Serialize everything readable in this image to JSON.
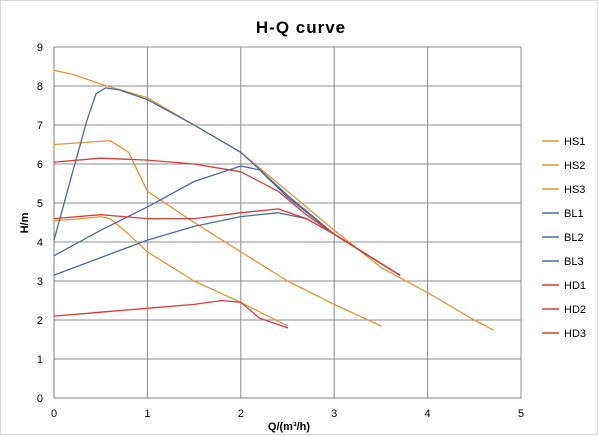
{
  "chart_data": {
    "type": "line",
    "title": "H-Q  curve",
    "xlabel": "Q/(m³/h)",
    "ylabel": "H/m",
    "xlim": [
      0,
      5
    ],
    "ylim": [
      0,
      9
    ],
    "x_ticks": [
      0,
      1,
      2,
      3,
      4,
      5
    ],
    "y_ticks": [
      0,
      1,
      2,
      3,
      4,
      5,
      6,
      7,
      8,
      9
    ],
    "grid": true,
    "legend_position": "right",
    "series": [
      {
        "name": "HS1",
        "color": "#e0963c",
        "x": [
          0,
          0.2,
          0.5,
          1.0,
          1.5,
          2.0,
          2.5,
          3.0,
          3.5,
          4.0,
          4.5,
          4.7
        ],
        "y": [
          8.4,
          8.3,
          8.05,
          7.7,
          7.0,
          6.3,
          5.3,
          4.3,
          3.35,
          2.7,
          2.0,
          1.75
        ]
      },
      {
        "name": "HS2",
        "color": "#e0963c",
        "x": [
          0,
          0.3,
          0.6,
          0.8,
          1.0,
          1.5,
          2.0,
          2.5,
          3.0,
          3.5
        ],
        "y": [
          6.5,
          6.55,
          6.6,
          6.3,
          5.3,
          4.5,
          3.75,
          3.0,
          2.4,
          1.85
        ]
      },
      {
        "name": "HS3",
        "color": "#e0963c",
        "x": [
          0,
          0.3,
          0.5,
          0.6,
          0.8,
          1.0,
          1.5,
          2.0,
          2.5
        ],
        "y": [
          4.55,
          4.6,
          4.65,
          4.6,
          4.2,
          3.75,
          3.0,
          2.45,
          1.85
        ]
      },
      {
        "name": "BL1",
        "color": "#4a6c9b",
        "x": [
          0,
          0.2,
          0.35,
          0.45,
          0.55,
          0.7,
          1.0,
          1.5,
          2.0,
          2.5,
          3.0,
          3.5,
          3.7
        ],
        "y": [
          4.05,
          5.8,
          7.1,
          7.8,
          7.95,
          7.9,
          7.65,
          7.0,
          6.3,
          5.2,
          4.2,
          3.45,
          3.15
        ]
      },
      {
        "name": "BL2",
        "color": "#4a6c9b",
        "x": [
          0,
          0.5,
          1.0,
          1.5,
          2.0,
          2.2,
          2.5,
          3.0,
          3.5,
          3.7
        ],
        "y": [
          3.65,
          4.3,
          4.9,
          5.55,
          5.95,
          5.85,
          5.15,
          4.2,
          3.45,
          3.15
        ]
      },
      {
        "name": "BL3",
        "color": "#4a6c9b",
        "x": [
          0,
          0.5,
          1.0,
          1.5,
          2.0,
          2.4,
          2.7,
          3.0,
          3.5,
          3.7
        ],
        "y": [
          3.15,
          3.6,
          4.05,
          4.4,
          4.65,
          4.75,
          4.6,
          4.2,
          3.45,
          3.15
        ]
      },
      {
        "name": "HD1",
        "color": "#d93a3a",
        "x": [
          0,
          0.5,
          1.0,
          1.5,
          2.0,
          2.4,
          2.7,
          3.0,
          3.5,
          3.7
        ],
        "y": [
          6.05,
          6.15,
          6.1,
          6.0,
          5.8,
          5.3,
          4.7,
          4.2,
          3.45,
          3.15
        ]
      },
      {
        "name": "HD2",
        "color": "#d93a3a",
        "x": [
          0,
          0.5,
          1.0,
          1.5,
          2.0,
          2.4,
          2.7,
          3.0,
          3.5,
          3.7
        ],
        "y": [
          4.6,
          4.7,
          4.6,
          4.6,
          4.75,
          4.85,
          4.6,
          4.2,
          3.45,
          3.15
        ]
      },
      {
        "name": "HD3",
        "color": "#d93a3a",
        "x": [
          0,
          0.5,
          1.0,
          1.5,
          1.8,
          2.0,
          2.2,
          2.5
        ],
        "y": [
          2.1,
          2.2,
          2.3,
          2.4,
          2.5,
          2.45,
          2.05,
          1.8
        ]
      }
    ]
  }
}
